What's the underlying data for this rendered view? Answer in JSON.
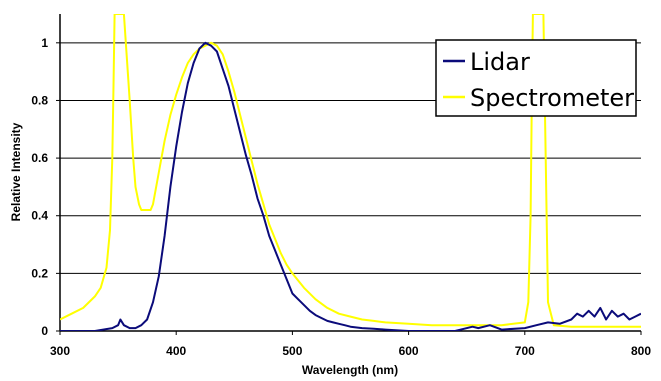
{
  "chart_data": {
    "type": "line",
    "title": "",
    "xlabel": "Wavelength (nm)",
    "ylabel": "Relative Intensity",
    "xlim": [
      300,
      800
    ],
    "ylim": [
      0,
      1.1
    ],
    "x_ticks": [
      300,
      400,
      500,
      600,
      700,
      800
    ],
    "y_ticks": [
      0,
      0.2,
      0.4,
      0.6,
      0.8,
      1
    ],
    "x_tick_labels": [
      "300",
      "400",
      "500",
      "600",
      "700",
      "800"
    ],
    "y_tick_labels": [
      "0",
      "0.2",
      "0.4",
      "0.6",
      "0.8",
      "1"
    ],
    "grid": "horizontal",
    "legend_position": "top-right",
    "series": [
      {
        "name": "Lidar",
        "color": "#0b0b7a",
        "x": [
          300,
          330,
          345,
          350,
          352,
          355,
          360,
          365,
          370,
          375,
          380,
          385,
          390,
          395,
          400,
          405,
          410,
          415,
          420,
          425,
          430,
          435,
          440,
          445,
          450,
          455,
          460,
          465,
          470,
          475,
          480,
          485,
          490,
          495,
          500,
          505,
          510,
          515,
          520,
          525,
          530,
          535,
          540,
          545,
          550,
          560,
          570,
          580,
          600,
          620,
          640,
          655,
          660,
          670,
          680,
          700,
          710,
          720,
          730,
          740,
          745,
          750,
          755,
          760,
          765,
          770,
          775,
          780,
          785,
          790,
          795,
          800
        ],
        "y": [
          0.0,
          0.0,
          0.01,
          0.02,
          0.04,
          0.02,
          0.01,
          0.01,
          0.02,
          0.04,
          0.1,
          0.19,
          0.33,
          0.5,
          0.64,
          0.76,
          0.86,
          0.93,
          0.98,
          1.0,
          0.99,
          0.97,
          0.91,
          0.85,
          0.77,
          0.69,
          0.61,
          0.54,
          0.46,
          0.4,
          0.33,
          0.28,
          0.23,
          0.18,
          0.13,
          0.11,
          0.09,
          0.07,
          0.055,
          0.045,
          0.035,
          0.03,
          0.025,
          0.02,
          0.015,
          0.01,
          0.008,
          0.005,
          0.0,
          0.0,
          0.0,
          0.015,
          0.01,
          0.02,
          0.005,
          0.01,
          0.02,
          0.03,
          0.025,
          0.04,
          0.06,
          0.05,
          0.07,
          0.05,
          0.08,
          0.04,
          0.07,
          0.05,
          0.06,
          0.04,
          0.05,
          0.06
        ]
      },
      {
        "name": "Spectrometer",
        "color": "#ffff00",
        "x": [
          300,
          310,
          320,
          330,
          335,
          340,
          343,
          345,
          346,
          347,
          350,
          355,
          360,
          363,
          365,
          368,
          370,
          373,
          378,
          380,
          385,
          390,
          395,
          400,
          405,
          410,
          415,
          420,
          425,
          430,
          435,
          440,
          445,
          450,
          455,
          460,
          465,
          470,
          475,
          480,
          485,
          490,
          495,
          500,
          510,
          520,
          530,
          540,
          550,
          560,
          570,
          580,
          600,
          620,
          650,
          680,
          700,
          703,
          705,
          706,
          707,
          712,
          716,
          718,
          720,
          725,
          740,
          760,
          780,
          800
        ],
        "y": [
          0.04,
          0.06,
          0.08,
          0.12,
          0.15,
          0.22,
          0.35,
          0.6,
          0.85,
          1.1,
          1.1,
          1.1,
          0.8,
          0.6,
          0.5,
          0.44,
          0.42,
          0.42,
          0.42,
          0.44,
          0.55,
          0.66,
          0.75,
          0.82,
          0.88,
          0.93,
          0.96,
          0.98,
          0.99,
          1.0,
          0.99,
          0.96,
          0.9,
          0.83,
          0.75,
          0.67,
          0.59,
          0.51,
          0.44,
          0.37,
          0.32,
          0.27,
          0.23,
          0.2,
          0.15,
          0.11,
          0.08,
          0.06,
          0.05,
          0.04,
          0.035,
          0.03,
          0.025,
          0.02,
          0.02,
          0.02,
          0.03,
          0.1,
          0.4,
          0.8,
          1.1,
          1.1,
          1.1,
          0.6,
          0.1,
          0.02,
          0.015,
          0.015,
          0.015,
          0.015
        ]
      }
    ]
  }
}
